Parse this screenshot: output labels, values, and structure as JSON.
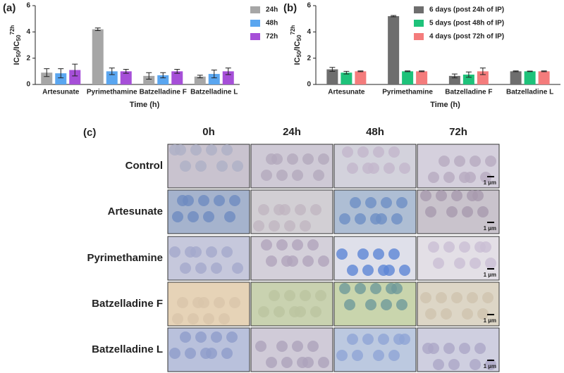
{
  "chart_data": [
    {
      "type": "bar",
      "panel": "(a)",
      "y_label": [
        "IC",
        "50",
        "/IC",
        "50",
        "72h"
      ],
      "x_label": "Time (h)",
      "categories": [
        "Artesunate",
        "Pyrimethamine",
        "Batzelladine F",
        "Batzelladine L"
      ],
      "series": [
        {
          "name": "24h",
          "color": "#a6a6a6",
          "values": [
            0.9,
            4.2,
            0.65,
            0.6
          ],
          "errors": [
            0.3,
            0.1,
            0.25,
            0.1
          ]
        },
        {
          "name": "48h",
          "color": "#5aa6f0",
          "values": [
            0.85,
            1.0,
            0.7,
            0.8
          ],
          "errors": [
            0.35,
            0.25,
            0.2,
            0.3
          ]
        },
        {
          "name": "72h",
          "color": "#a64fd8",
          "values": [
            1.1,
            1.0,
            1.0,
            1.0
          ],
          "errors": [
            0.45,
            0.15,
            0.15,
            0.25
          ]
        }
      ],
      "ylim": [
        0,
        6
      ],
      "yticks": [
        0,
        2,
        4,
        6
      ],
      "legend": "top-right"
    },
    {
      "type": "bar",
      "panel": "(b)",
      "y_label": [
        "IC",
        "50",
        "/IC",
        "50",
        "72h"
      ],
      "x_label": "Time (h)",
      "categories": [
        "Artesunate",
        "Pyrimethamine",
        "Batzelladine F",
        "Batzelladine L"
      ],
      "series": [
        {
          "name": "6 days (post 24h of IP)",
          "color": "#6e6e6e",
          "values": [
            1.15,
            5.2,
            0.65,
            1.0
          ],
          "errors": [
            0.15,
            0.05,
            0.15,
            0.03
          ]
        },
        {
          "name": "5 days (post 48h of IP)",
          "color": "#1ec27a",
          "values": [
            0.9,
            1.0,
            0.75,
            1.0
          ],
          "errors": [
            0.1,
            0.03,
            0.2,
            0.02
          ]
        },
        {
          "name": "4 days (post 72h of IP)",
          "color": "#f47c7c",
          "values": [
            1.0,
            1.0,
            1.0,
            1.0
          ],
          "errors": [
            0.03,
            0.03,
            0.25,
            0.03
          ]
        }
      ],
      "ylim": [
        0,
        6
      ],
      "yticks": [
        0,
        2,
        4,
        6
      ],
      "legend": "top-right"
    }
  ],
  "micrographs": {
    "panel": "(c)",
    "columns": [
      "0h",
      "24h",
      "48h",
      "72h"
    ],
    "rows": [
      "Control",
      "Artesunate",
      "Pyrimethamine",
      "Batzelladine F",
      "Batzelladine L"
    ],
    "scale_bar": "1 µm"
  }
}
